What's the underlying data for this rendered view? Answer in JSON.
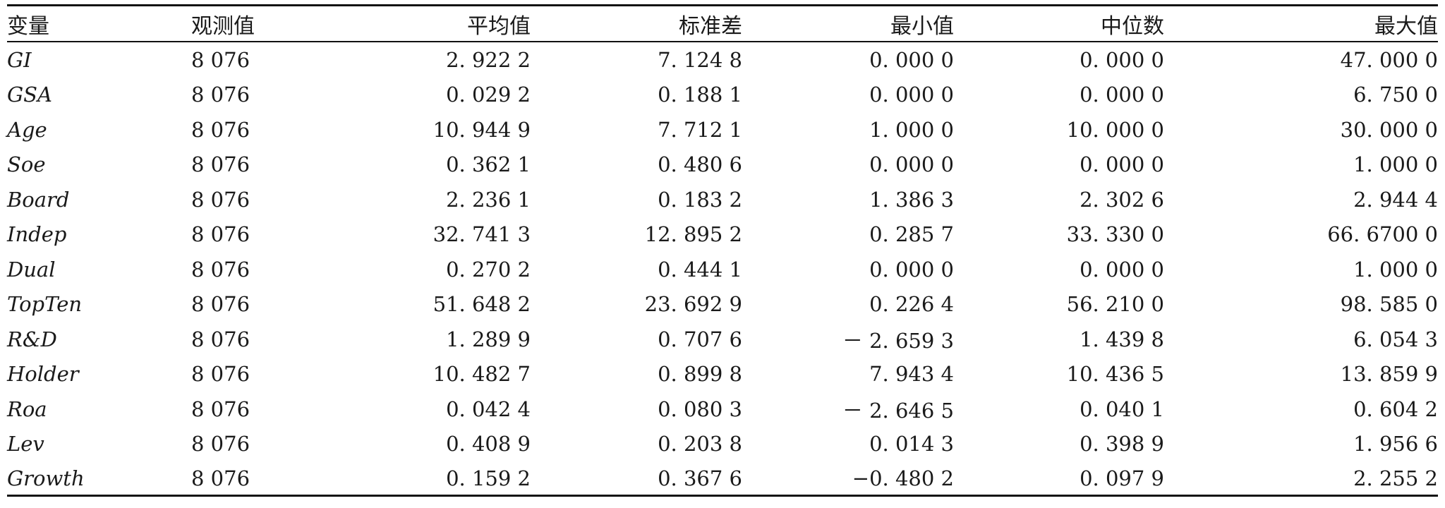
{
  "table": {
    "headers": [
      "变量",
      "观测值",
      "平均值",
      "标准差",
      "最小值",
      "中位数",
      "最大值"
    ],
    "rows": [
      {
        "var": "GI",
        "obs": "8 076",
        "mean": "2. 922 2",
        "std": "7. 124 8",
        "min": "0. 000 0",
        "median": "0. 000 0",
        "max": "47. 000 0"
      },
      {
        "var": "GSA",
        "obs": "8 076",
        "mean": "0. 029 2",
        "std": "0. 188 1",
        "min": "0. 000 0",
        "median": "0. 000 0",
        "max": "6. 750 0"
      },
      {
        "var": "Age",
        "obs": "8 076",
        "mean": "10. 944 9",
        "std": "7. 712 1",
        "min": "1. 000 0",
        "median": "10. 000 0",
        "max": "30. 000 0"
      },
      {
        "var": "Soe",
        "obs": "8 076",
        "mean": "0. 362 1",
        "std": "0. 480 6",
        "min": "0. 000 0",
        "median": "0. 000 0",
        "max": "1. 000 0"
      },
      {
        "var": "Board",
        "obs": "8 076",
        "mean": "2. 236 1",
        "std": "0. 183 2",
        "min": "1. 386 3",
        "median": "2. 302 6",
        "max": "2. 944 4"
      },
      {
        "var": "Indep",
        "obs": "8 076",
        "mean": "32. 741 3",
        "std": "12. 895 2",
        "min": "0. 285 7",
        "median": "33. 330 0",
        "max": "66. 6700 0"
      },
      {
        "var": "Dual",
        "obs": "8 076",
        "mean": "0. 270 2",
        "std": "0. 444 1",
        "min": "0. 000 0",
        "median": "0. 000 0",
        "max": "1. 000 0"
      },
      {
        "var": "TopTen",
        "obs": "8 076",
        "mean": "51. 648 2",
        "std": "23. 692 9",
        "min": "0. 226 4",
        "median": "56. 210 0",
        "max": "98. 585 0"
      },
      {
        "var": "R&D",
        "obs": "8 076",
        "mean": "1. 289 9",
        "std": "0. 707 6",
        "min": "－ 2. 659 3",
        "median": "1. 439 8",
        "max": "6. 054 3"
      },
      {
        "var": "Holder",
        "obs": "8 076",
        "mean": "10. 482 7",
        "std": "0. 899 8",
        "min": "7. 943 4",
        "median": "10. 436 5",
        "max": "13. 859 9"
      },
      {
        "var": "Roa",
        "obs": "8 076",
        "mean": "0. 042 4",
        "std": "0. 080 3",
        "min": "－ 2. 646 5",
        "median": "0. 040 1",
        "max": "0. 604 2"
      },
      {
        "var": "Lev",
        "obs": "8 076",
        "mean": "0. 408 9",
        "std": "0. 203 8",
        "min": "0. 014 3",
        "median": "0. 398 9",
        "max": "1. 956 6"
      },
      {
        "var": "Growth",
        "obs": "8 076",
        "mean": "0. 159 2",
        "std": "0. 367 6",
        "min": "−0. 480 2",
        "median": "0. 097 9",
        "max": "2. 255 2"
      }
    ]
  }
}
